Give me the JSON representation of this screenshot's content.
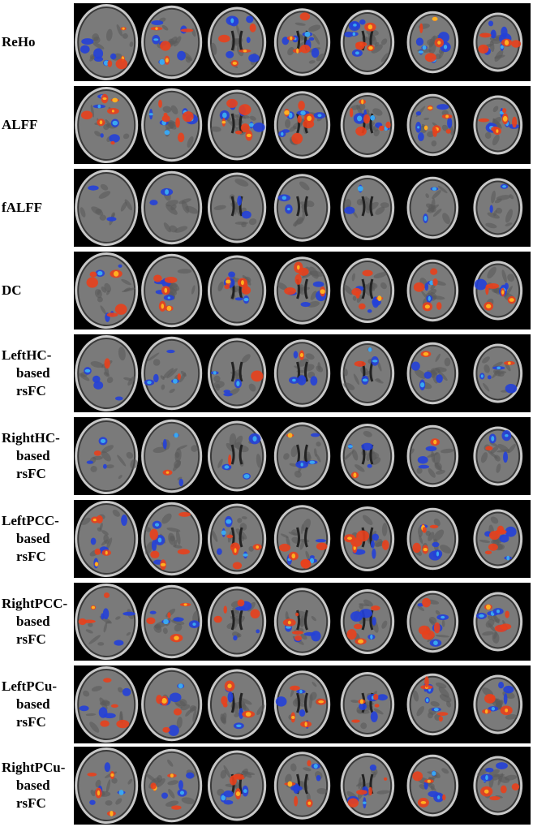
{
  "figure": {
    "rows": [
      {
        "lines": [
          "ReHo"
        ]
      },
      {
        "lines": [
          "ALFF"
        ]
      },
      {
        "lines": [
          "fALFF"
        ]
      },
      {
        "lines": [
          "DC"
        ]
      },
      {
        "lines": [
          "LeftHC-",
          "based",
          "rsFC"
        ]
      },
      {
        "lines": [
          "RightHC-",
          "based",
          "rsFC"
        ]
      },
      {
        "lines": [
          "LeftPCC-",
          "based",
          "rsFC"
        ]
      },
      {
        "lines": [
          "RightPCC-",
          "based",
          "rsFC"
        ]
      },
      {
        "lines": [
          "LeftPCu-",
          "based",
          "rsFC"
        ]
      },
      {
        "lines": [
          "RightPCu-",
          "based",
          "rsFC"
        ]
      }
    ],
    "colors": {
      "background": "#ffffff",
      "strip": "#000000",
      "brain": "#7a7a7a",
      "skull": "#c8c8c8",
      "positive": "#e8401c",
      "positive_peak": "#ffb020",
      "negative": "#2340d8",
      "negative_peak": "#3aa8f0"
    }
  }
}
